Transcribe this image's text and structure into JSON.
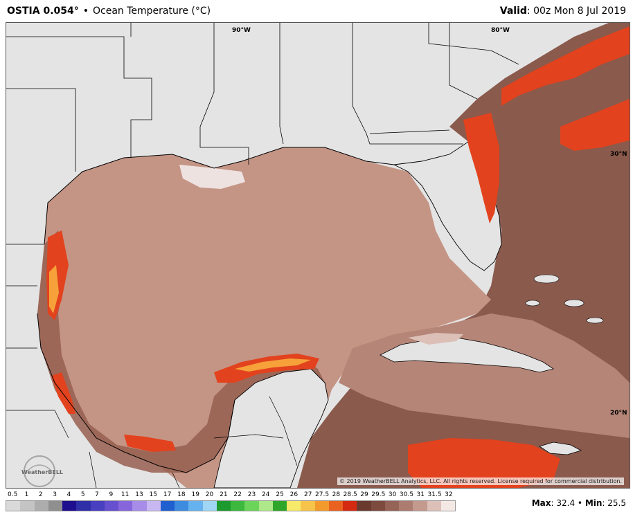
{
  "header": {
    "model": "OSTIA 0.054°",
    "separator": "•",
    "title": "Ocean Temperature (°C)",
    "valid_label": "Valid",
    "valid_value": ": 00z Mon 8 Jul 2019"
  },
  "map": {
    "lon_labels": [
      "90°W",
      "80°W"
    ],
    "lat_labels": [
      "30°N",
      "20°N"
    ],
    "credit": "© 2019 WeatherBELL Analytics, LLC. All rights reserved. License required for commercial distribution.",
    "logo_text": "WeatherBELL"
  },
  "legend": {
    "labels": [
      "0.5",
      "1",
      "2",
      "3",
      "4",
      "5",
      "7",
      "9",
      "11",
      "13",
      "15",
      "17",
      "18",
      "19",
      "20",
      "21",
      "22",
      "23",
      "24",
      "25",
      "26",
      "27",
      "27.5",
      "28",
      "28.5",
      "29",
      "29.5",
      "30",
      "30.5",
      "31",
      "31.5",
      "32"
    ],
    "colors": [
      "#d9d9d9",
      "#c4c4c4",
      "#adadad",
      "#8f8f8f",
      "#1e0f8f",
      "#2f2fa8",
      "#4840c0",
      "#6650cf",
      "#8766dc",
      "#a78ce8",
      "#c8b8f2",
      "#1f5fd0",
      "#3d8ce0",
      "#66b2ef",
      "#9fd6f6",
      "#1c9a2e",
      "#3cb83e",
      "#6cd45a",
      "#aee88a",
      "#2fa62a",
      "#f7e96a",
      "#f6c44a",
      "#f29a2c",
      "#ea6220",
      "#d42a12",
      "#6b3a2f",
      "#7d4a3e",
      "#966357",
      "#ad7c70",
      "#c49a8f",
      "#dcc0b8",
      "#f4e8e5"
    ]
  },
  "stats": {
    "max_label": "Max",
    "max_value": ": 32.4",
    "sep": " • ",
    "min_label": "Min",
    "min_value": ": 25.5"
  }
}
